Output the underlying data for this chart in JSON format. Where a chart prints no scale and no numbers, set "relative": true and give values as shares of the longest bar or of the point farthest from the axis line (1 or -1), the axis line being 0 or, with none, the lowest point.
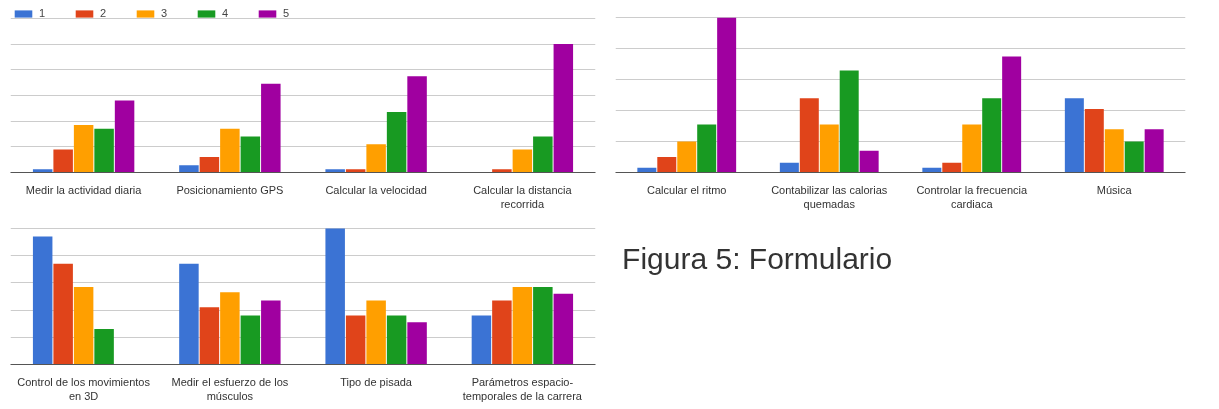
{
  "chart_data": [
    {
      "type": "bar",
      "relative": true,
      "grid": "y",
      "legend": "top left",
      "categories": [
        "Medir la actividad diaria",
        "Posicionamiento GPS",
        "Calcular la velocidad",
        "Calcular la distancia recorrida"
      ],
      "series": [
        {
          "name": "1",
          "color": "#3b73d4",
          "values": [
            0.026,
            0.057,
            0.026,
            0
          ]
        },
        {
          "name": "2",
          "color": "#e0441a",
          "values": [
            0.18,
            0.12,
            0.026,
            0.026
          ]
        },
        {
          "name": "3",
          "color": "#ff9f00",
          "values": [
            0.37,
            0.34,
            0.22,
            0.18
          ]
        },
        {
          "name": "4",
          "color": "#189a22",
          "values": [
            0.34,
            0.28,
            0.47,
            0.28
          ]
        },
        {
          "name": "5",
          "color": "#a000a0",
          "values": [
            0.56,
            0.69,
            0.75,
            1
          ]
        }
      ]
    },
    {
      "type": "bar",
      "relative": true,
      "grid": "y",
      "categories": [
        "Calcular el ritmo",
        "Contabilizar las calorias quemadas",
        "Controlar la frecuencia cardiaca",
        "Música"
      ],
      "series": [
        {
          "color": "#3b73d4",
          "values": [
            0.03,
            0.063,
            0.03,
            0.48
          ]
        },
        {
          "color": "#e0441a",
          "values": [
            0.1,
            0.48,
            0.063,
            0.41
          ]
        },
        {
          "color": "#ff9f00",
          "values": [
            0.2,
            0.31,
            0.31,
            0.28
          ]
        },
        {
          "color": "#189a22",
          "values": [
            0.31,
            0.66,
            0.48,
            0.2
          ]
        },
        {
          "color": "#a000a0",
          "values": [
            1,
            0.14,
            0.75,
            0.28
          ]
        }
      ]
    },
    {
      "type": "bar",
      "relative": true,
      "grid": "y",
      "categories": [
        "Control de los movimientos en 3D",
        "Medir el esfuerzo de los músculos",
        "Tipo de pisada",
        "Parámetros espacio-temporales de la carrera"
      ],
      "annotations": [
        "Figura 5: Formulario"
      ],
      "series": [
        {
          "color": "#3b73d4",
          "values": [
            0.94,
            0.74,
            1,
            0.36
          ]
        },
        {
          "color": "#e0441a",
          "values": [
            0.74,
            0.42,
            0.36,
            0.47
          ]
        },
        {
          "color": "#ff9f00",
          "values": [
            0.57,
            0.53,
            0.47,
            0.57
          ]
        },
        {
          "color": "#189a22",
          "values": [
            0.26,
            0.36,
            0.36,
            0.57
          ]
        },
        {
          "color": "#a000a0",
          "values": [
            0,
            0.47,
            0.31,
            0.52
          ]
        }
      ]
    }
  ]
}
